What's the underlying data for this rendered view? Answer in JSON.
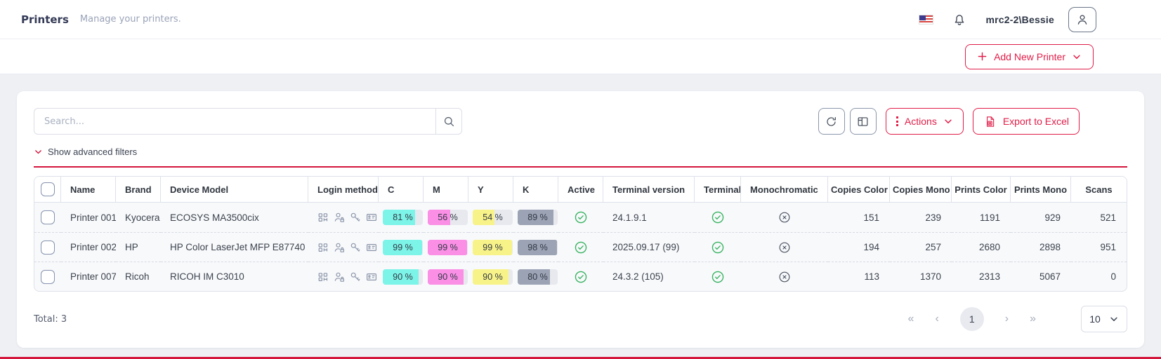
{
  "header": {
    "title": "Printers",
    "subtitle": "Manage your printers.",
    "username": "mrc2-2\\Bessie"
  },
  "actions_bar": {
    "add_button_label": "Add New Printer"
  },
  "toolbar": {
    "search_placeholder": "Search...",
    "actions_label": "Actions",
    "export_label": "Export to Excel",
    "show_filters_label": "Show advanced filters"
  },
  "table": {
    "columns": [
      "Name",
      "Brand",
      "Device Model",
      "Login methods",
      "C",
      "M",
      "Y",
      "K",
      "Active",
      "Terminal version",
      "Terminal",
      "Monochromatic",
      "Copies Color",
      "Copies Mono",
      "Prints Color",
      "Prints Mono",
      "Scans"
    ],
    "login_method_icons": [
      "pin-code-icon",
      "user-lock-icon",
      "key-icon",
      "id-card-icon"
    ],
    "rows": [
      {
        "name": "Printer 001",
        "brand": "Kyocera",
        "model": "ECOSYS MA3500cix",
        "c": 81,
        "m": 56,
        "y": 54,
        "k": 89,
        "active": true,
        "terminal_version": "24.1.9.1",
        "terminal": true,
        "monochromatic": false,
        "copies_color": "151",
        "copies_mono": "239",
        "prints_color": "1191",
        "prints_mono": "929",
        "scans": "521"
      },
      {
        "name": "Printer 002",
        "brand": "HP",
        "model": "HP Color LaserJet MFP E87740",
        "c": 99,
        "m": 99,
        "y": 99,
        "k": 98,
        "active": true,
        "terminal_version": "2025.09.17 (99)",
        "terminal": true,
        "monochromatic": false,
        "copies_color": "194",
        "copies_mono": "257",
        "prints_color": "2680",
        "prints_mono": "2898",
        "scans": "951"
      },
      {
        "name": "Printer 007",
        "brand": "Ricoh",
        "model": "RICOH IM C3010",
        "c": 90,
        "m": 90,
        "y": 90,
        "k": 80,
        "active": true,
        "terminal_version": "24.3.2 (105)",
        "terminal": true,
        "monochromatic": false,
        "copies_color": "113",
        "copies_mono": "1370",
        "prints_color": "2313",
        "prints_mono": "5067",
        "scans": "0"
      }
    ]
  },
  "footer": {
    "total": "Total: 3",
    "pagination": {
      "first": "«",
      "prev": "‹",
      "page": "1",
      "next": "›",
      "last": "»"
    },
    "page_size": "10"
  },
  "colors": {
    "accent_red": "#e11d48",
    "divider_red": "#d4163c",
    "cyan_level": "#7cf4e8",
    "magenta_level": "#fa8fe5",
    "yellow_level": "#f8f388",
    "black_level": "#9ba3b4",
    "success_green": "#35b25f"
  }
}
